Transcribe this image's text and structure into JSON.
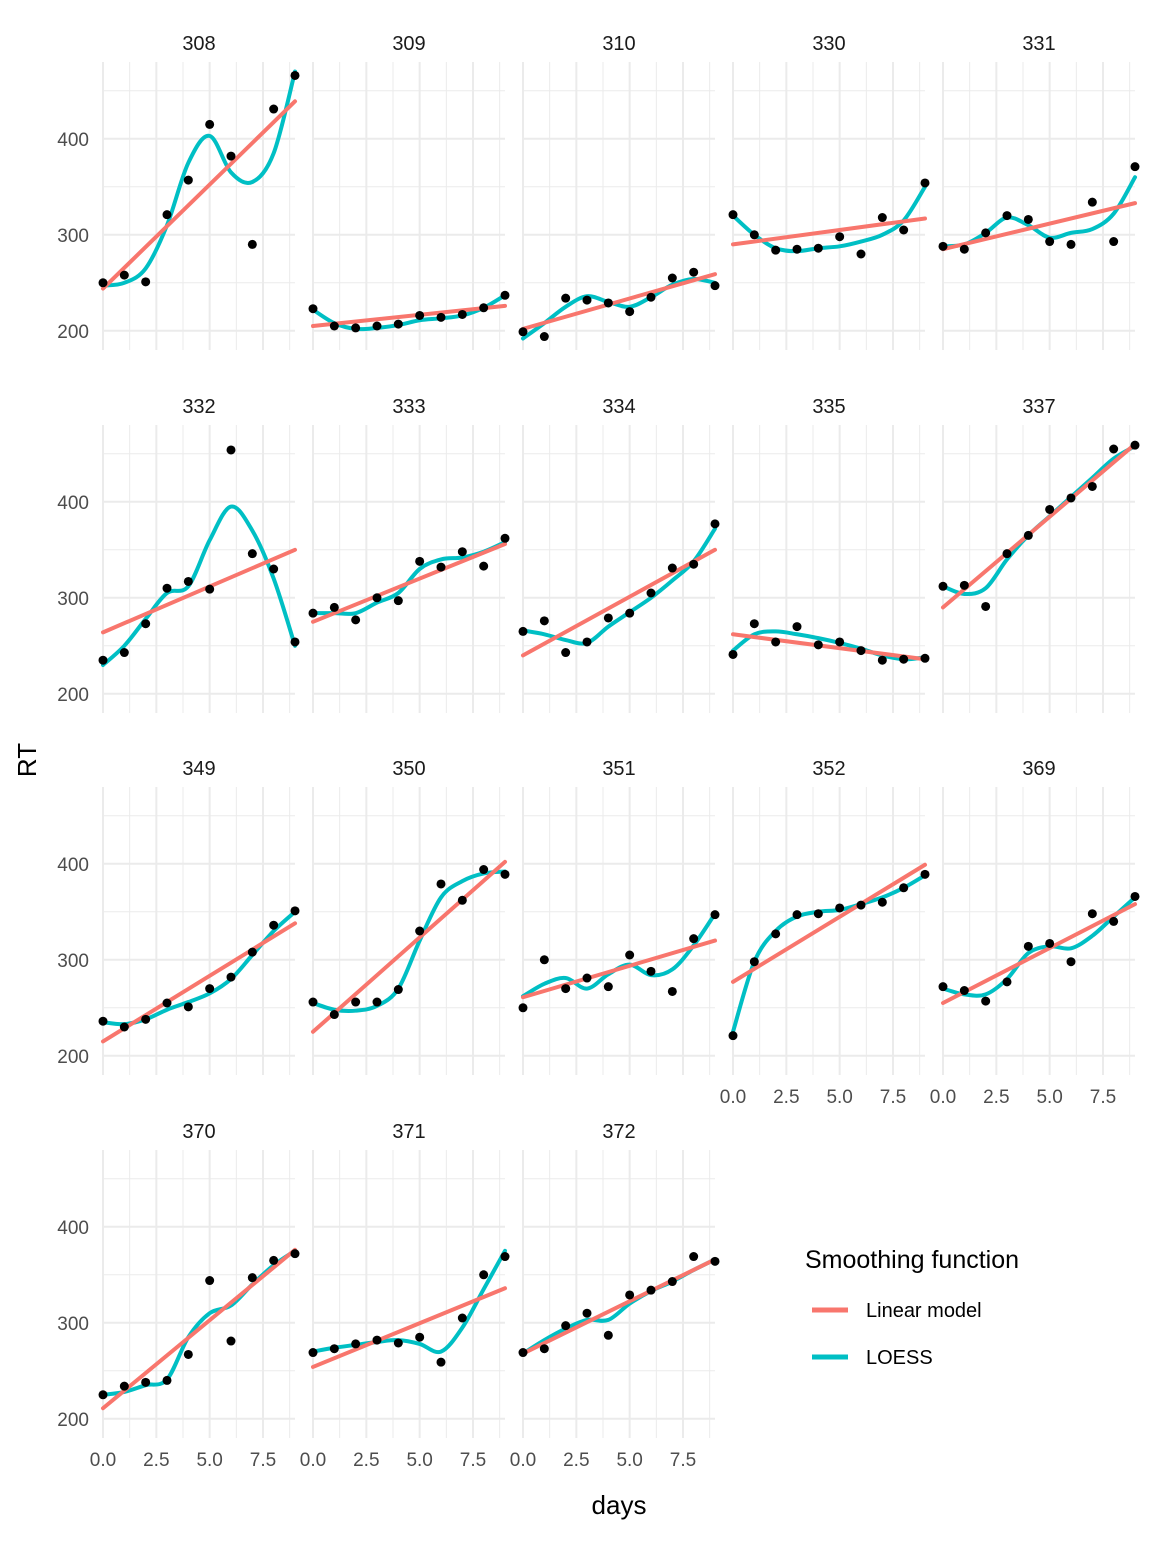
{
  "chart_data": {
    "type": "scatter",
    "layout": "facet-grid",
    "xlabel": "days",
    "ylabel": "RT",
    "xlim": [
      0,
      9
    ],
    "ylim": [
      180,
      480
    ],
    "x_ticks": [
      0.0,
      2.5,
      5.0,
      7.5
    ],
    "x_tick_labels": [
      "0.0",
      "2.5",
      "5.0",
      "7.5"
    ],
    "y_ticks": [
      200,
      300,
      400
    ],
    "y_tick_labels": [
      "200",
      "300",
      "400"
    ],
    "grid": true,
    "legend": {
      "title": "Smoothing function",
      "placement": "bottom-right",
      "entries": [
        {
          "name": "Linear model",
          "color": "#F8766D"
        },
        {
          "name": "LOESS",
          "color": "#00BFC4"
        }
      ]
    },
    "colors": {
      "points": "#000000",
      "linear": "#F8766D",
      "loess": "#00BFC4",
      "grid": "#EBEBEB",
      "text": "#4D4D4D"
    },
    "days": [
      0,
      1,
      2,
      3,
      4,
      5,
      6,
      7,
      8,
      9
    ],
    "panels": [
      {
        "subject": "308",
        "points": [
          250,
          258,
          251,
          321,
          357,
          415,
          382,
          290,
          431,
          466
        ],
        "linear": [
          244,
          439
        ],
        "loess": [
          247,
          250,
          265,
          310,
          375,
          403,
          365,
          355,
          385,
          470
        ]
      },
      {
        "subject": "309",
        "points": [
          223,
          205,
          203,
          205,
          207,
          216,
          214,
          217,
          224,
          237
        ],
        "linear": [
          205,
          226
        ],
        "loess": [
          222,
          208,
          202,
          203,
          206,
          211,
          213,
          216,
          224,
          237
        ]
      },
      {
        "subject": "310",
        "points": [
          199,
          194,
          234,
          232,
          229,
          220,
          235,
          255,
          261,
          247
        ],
        "linear": [
          202,
          259
        ],
        "loess": [
          192,
          208,
          225,
          236,
          230,
          225,
          235,
          248,
          254,
          250
        ]
      },
      {
        "subject": "330",
        "points": [
          321,
          300,
          284,
          285,
          286,
          298,
          280,
          318,
          305,
          354
        ],
        "linear": [
          290,
          317
        ],
        "loess": [
          320,
          300,
          286,
          283,
          286,
          288,
          293,
          300,
          315,
          350
        ]
      },
      {
        "subject": "331",
        "points": [
          288,
          285,
          302,
          320,
          316,
          293,
          290,
          334,
          293,
          371
        ],
        "linear": [
          285,
          333
        ],
        "loess": [
          288,
          290,
          302,
          318,
          310,
          297,
          302,
          306,
          322,
          360
        ]
      },
      {
        "subject": "332",
        "points": [
          235,
          243,
          273,
          310,
          317,
          309,
          454,
          346,
          330,
          254
        ],
        "linear": [
          264,
          350
        ],
        "loess": [
          230,
          250,
          278,
          305,
          312,
          360,
          395,
          370,
          320,
          250
        ]
      },
      {
        "subject": "333",
        "points": [
          284,
          290,
          277,
          300,
          297,
          338,
          332,
          348,
          333,
          362
        ],
        "linear": [
          275,
          356
        ],
        "loess": [
          284,
          284,
          284,
          295,
          305,
          330,
          340,
          342,
          348,
          358
        ]
      },
      {
        "subject": "334",
        "points": [
          265,
          276,
          243,
          254,
          279,
          284,
          305,
          331,
          335,
          377
        ],
        "linear": [
          240,
          350
        ],
        "loess": [
          266,
          262,
          256,
          253,
          270,
          285,
          300,
          318,
          338,
          372
        ]
      },
      {
        "subject": "335",
        "points": [
          241,
          273,
          254,
          270,
          251,
          254,
          245,
          235,
          236,
          237
        ],
        "linear": [
          262,
          236
        ],
        "loess": [
          245,
          262,
          265,
          262,
          258,
          253,
          247,
          240,
          236,
          238
        ]
      },
      {
        "subject": "337",
        "points": [
          312,
          313,
          291,
          346,
          365,
          392,
          404,
          416,
          455,
          459
        ],
        "linear": [
          290,
          460
        ],
        "loess": [
          312,
          304,
          310,
          340,
          365,
          385,
          405,
          425,
          445,
          458
        ]
      },
      {
        "subject": "349",
        "points": [
          236,
          230,
          238,
          255,
          251,
          270,
          282,
          308,
          336,
          351
        ],
        "linear": [
          215,
          338
        ],
        "loess": [
          235,
          233,
          238,
          248,
          256,
          265,
          280,
          305,
          330,
          350
        ]
      },
      {
        "subject": "350",
        "points": [
          256,
          243,
          256,
          256,
          269,
          330,
          379,
          362,
          394,
          389
        ],
        "linear": [
          225,
          402
        ],
        "loess": [
          255,
          248,
          247,
          252,
          270,
          320,
          365,
          382,
          390,
          392
        ]
      },
      {
        "subject": "351",
        "points": [
          250,
          300,
          270,
          281,
          272,
          305,
          288,
          267,
          322,
          347
        ],
        "linear": [
          261,
          320
        ],
        "loess": [
          262,
          275,
          281,
          270,
          285,
          295,
          284,
          290,
          315,
          348
        ]
      },
      {
        "subject": "352",
        "points": [
          221,
          298,
          327,
          347,
          348,
          354,
          357,
          360,
          375,
          389
        ],
        "linear": [
          277,
          399
        ],
        "loess": [
          225,
          298,
          330,
          345,
          350,
          352,
          358,
          365,
          375,
          388
        ]
      },
      {
        "subject": "369",
        "points": [
          272,
          268,
          257,
          277,
          314,
          317,
          298,
          348,
          340,
          366
        ],
        "linear": [
          255,
          358
        ],
        "loess": [
          270,
          264,
          264,
          280,
          307,
          314,
          312,
          325,
          345,
          365
        ]
      },
      {
        "subject": "370",
        "points": [
          225,
          234,
          238,
          240,
          267,
          344,
          281,
          347,
          365,
          372
        ],
        "linear": [
          211,
          376
        ],
        "loess": [
          225,
          228,
          235,
          241,
          285,
          310,
          318,
          340,
          360,
          375
        ]
      },
      {
        "subject": "371",
        "points": [
          269,
          273,
          278,
          282,
          279,
          285,
          259,
          305,
          350,
          369
        ],
        "linear": [
          254,
          336
        ],
        "loess": [
          270,
          274,
          277,
          280,
          282,
          278,
          270,
          295,
          335,
          375
        ]
      },
      {
        "subject": "372",
        "points": [
          269,
          273,
          297,
          310,
          287,
          329,
          334,
          343,
          369,
          364
        ],
        "linear": [
          268,
          366
        ],
        "loess": [
          268,
          282,
          294,
          303,
          303,
          320,
          333,
          343,
          355,
          366
        ]
      }
    ]
  }
}
